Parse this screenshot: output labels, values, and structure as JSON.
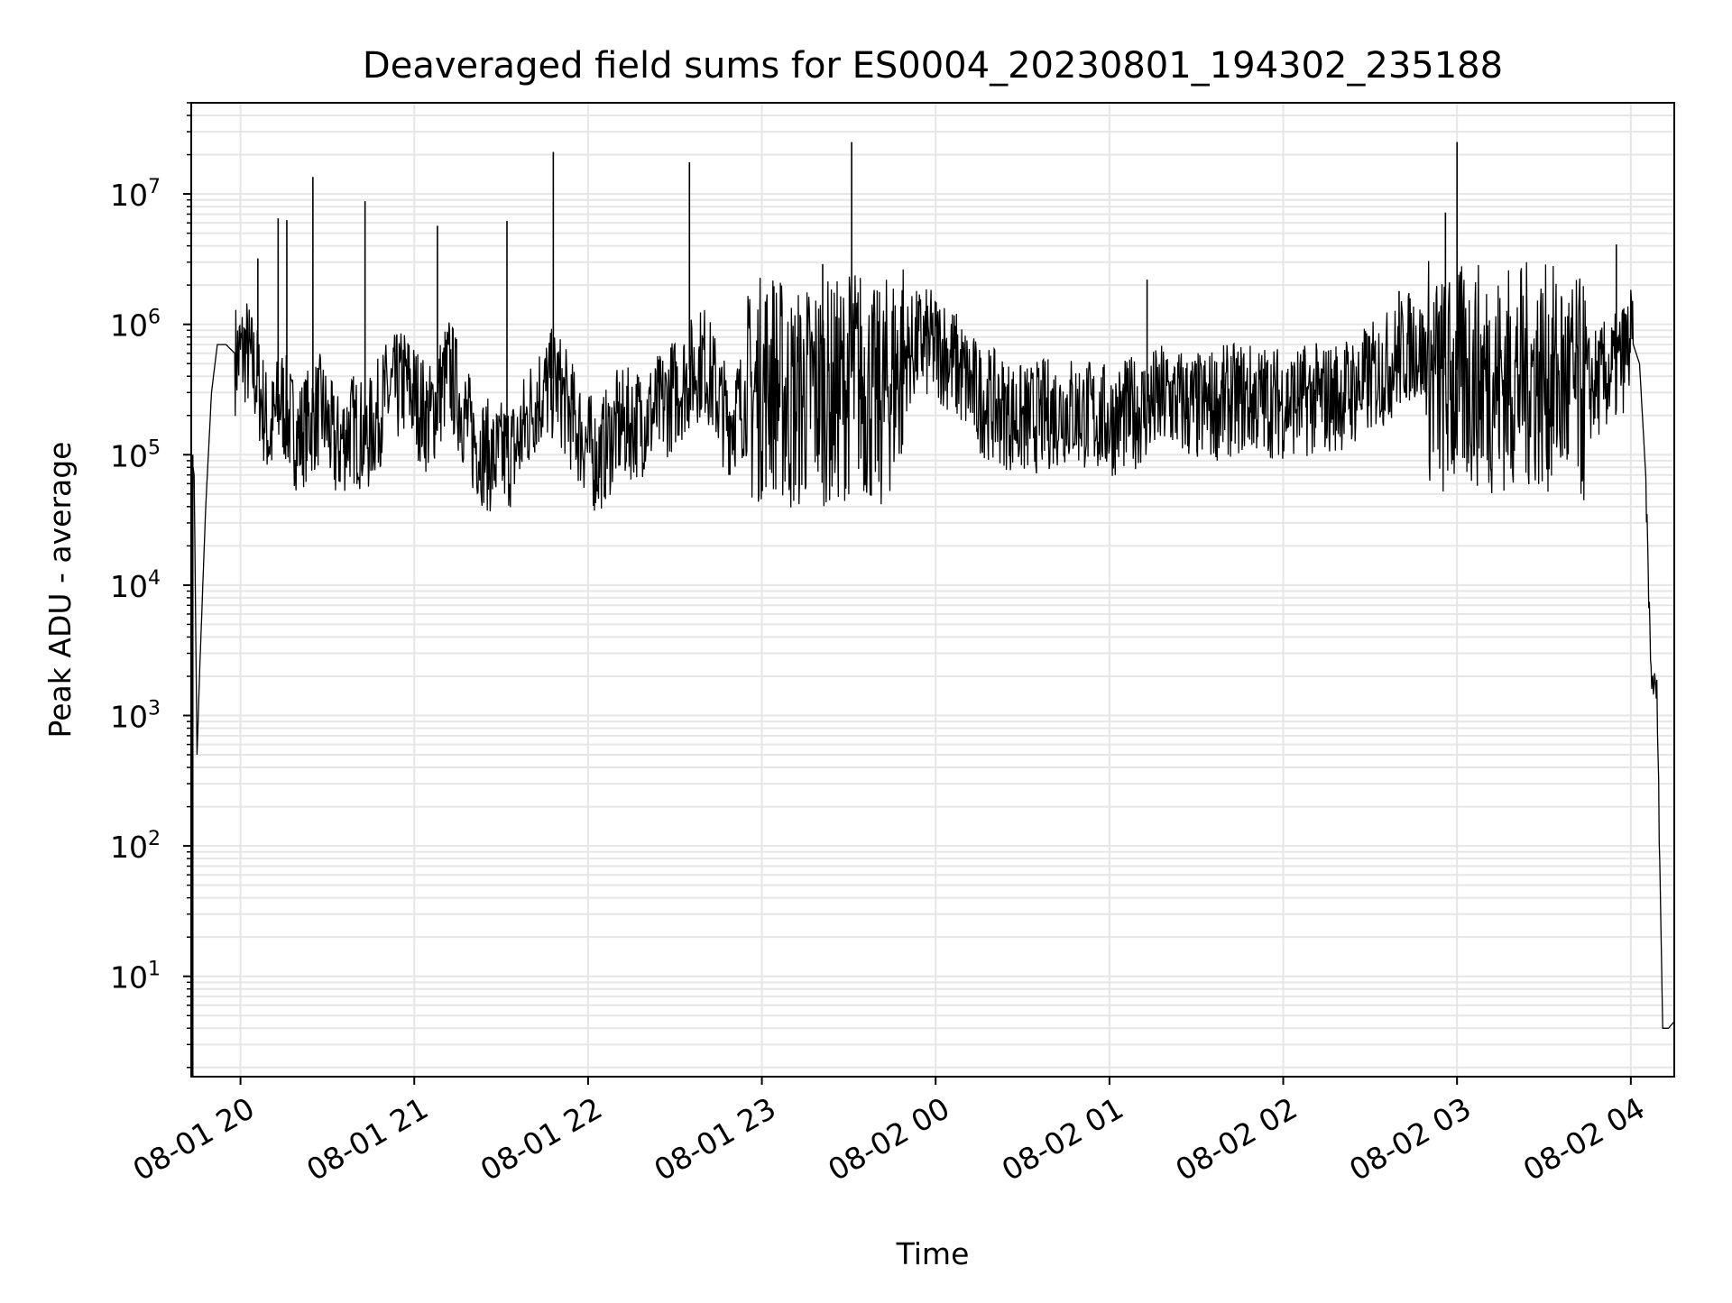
{
  "chart_data": {
    "type": "line",
    "title": "Deaveraged field sums for ES0004_20230801_194302_235188",
    "xlabel": "Time",
    "ylabel": "Peak ADU - average",
    "yscale": "log",
    "ylim": [
      1.7,
      50000000
    ],
    "xlim": [
      "2023-08-01 19:43",
      "2023-08-02 04:15"
    ],
    "grid": true,
    "x_ticks": [
      "08-01 20",
      "08-01 21",
      "08-01 22",
      "08-01 23",
      "08-02 00",
      "08-02 01",
      "08-02 02",
      "08-02 03",
      "08-02 04"
    ],
    "x_tick_times": [
      "2023-08-01 20:00",
      "2023-08-01 21:00",
      "2023-08-01 22:00",
      "2023-08-01 23:00",
      "2023-08-02 00:00",
      "2023-08-02 01:00",
      "2023-08-02 02:00",
      "2023-08-02 03:00",
      "2023-08-02 04:00"
    ],
    "y_ticks": [
      {
        "value": 10,
        "base": "10",
        "exp": "1"
      },
      {
        "value": 100,
        "base": "10",
        "exp": "2"
      },
      {
        "value": 1000,
        "base": "10",
        "exp": "3"
      },
      {
        "value": 10000,
        "base": "10",
        "exp": "4"
      },
      {
        "value": 100000,
        "base": "10",
        "exp": "5"
      },
      {
        "value": 1000000,
        "base": "10",
        "exp": "6"
      },
      {
        "value": 10000000,
        "base": "10",
        "exp": "7"
      }
    ],
    "line_color": "#000000",
    "grid_color": "#e6e6e6",
    "series": [
      {
        "x": [
          "2023-08-01 19:43",
          "2023-08-01 19:44",
          "2023-08-01 19:45",
          "2023-08-01 19:46",
          "2023-08-01 19:48",
          "2023-08-01 19:50",
          "2023-08-01 19:52",
          "2023-08-01 19:55",
          "2023-08-01 19:58",
          "2023-08-01 20:02",
          "2023-08-01 20:06",
          "2023-08-01 20:10",
          "2023-08-01 20:14",
          "2023-08-01 20:17",
          "2023-08-01 20:20",
          "2023-08-01 20:24",
          "2023-08-01 20:28",
          "2023-08-01 20:33",
          "2023-08-01 20:38",
          "2023-08-01 20:44",
          "2023-08-01 20:50",
          "2023-08-01 20:57",
          "2023-08-01 21:05",
          "2023-08-01 21:12",
          "2023-08-01 21:20",
          "2023-08-01 21:27",
          "2023-08-01 21:35",
          "2023-08-01 21:42",
          "2023-08-01 21:49",
          "2023-08-01 21:55",
          "2023-08-01 22:03",
          "2023-08-01 22:10",
          "2023-08-01 22:18",
          "2023-08-01 22:25",
          "2023-08-01 22:33",
          "2023-08-01 22:40",
          "2023-08-01 22:48",
          "2023-08-01 22:55",
          "2023-08-01 23:03",
          "2023-08-01 23:10",
          "2023-08-01 23:18",
          "2023-08-01 23:25",
          "2023-08-01 23:33",
          "2023-08-01 23:40",
          "2023-08-01 23:48",
          "2023-08-01 23:55",
          "2023-08-02 00:03",
          "2023-08-02 00:15",
          "2023-08-02 00:30",
          "2023-08-02 00:45",
          "2023-08-02 01:00",
          "2023-08-02 01:12",
          "2023-08-02 01:20",
          "2023-08-02 01:30",
          "2023-08-02 01:45",
          "2023-08-02 02:00",
          "2023-08-02 02:15",
          "2023-08-02 02:25",
          "2023-08-02 02:35",
          "2023-08-02 02:45",
          "2023-08-02 02:55",
          "2023-08-02 03:05",
          "2023-08-02 03:15",
          "2023-08-02 03:25",
          "2023-08-02 03:35",
          "2023-08-02 03:45",
          "2023-08-02 03:55",
          "2023-08-02 04:00",
          "2023-08-02 04:03",
          "2023-08-02 04:05",
          "2023-08-02 04:07",
          "2023-08-02 04:09",
          "2023-08-02 04:11",
          "2023-08-02 04:12",
          "2023-08-02 04:13",
          "2023-08-02 04:15"
        ],
        "y": [
          100000,
          70000,
          500,
          2500,
          40000,
          300000,
          700000,
          700000,
          600000,
          700000,
          400000,
          150000,
          300000,
          200000,
          150000,
          200000,
          250000,
          120000,
          180000,
          150000,
          300000,
          400000,
          200000,
          500000,
          150000,
          100000,
          120000,
          300000,
          400000,
          200000,
          100000,
          180000,
          200000,
          250000,
          400000,
          600000,
          200000,
          300000,
          500000,
          300000,
          400000,
          350000,
          500000,
          300000,
          600000,
          800000,
          700000,
          300000,
          200000,
          250000,
          200000,
          250000,
          300000,
          250000,
          300000,
          280000,
          300000,
          350000,
          500000,
          800000,
          400000,
          500000,
          450000,
          500000,
          450000,
          350000,
          500000,
          800000,
          500000,
          80000,
          2000,
          1500,
          4,
          4,
          4,
          4.5
        ]
      }
    ],
    "spikes": [
      {
        "x": "2023-08-01 20:06",
        "y": 3200000
      },
      {
        "x": "2023-08-01 20:13",
        "y": 6500000
      },
      {
        "x": "2023-08-01 20:16",
        "y": 6300000
      },
      {
        "x": "2023-08-01 20:25",
        "y": 13500000
      },
      {
        "x": "2023-08-01 20:43",
        "y": 8800000
      },
      {
        "x": "2023-08-01 21:08",
        "y": 5700000
      },
      {
        "x": "2023-08-01 21:32",
        "y": 6200000
      },
      {
        "x": "2023-08-01 21:48",
        "y": 21000000
      },
      {
        "x": "2023-08-01 22:35",
        "y": 17500000
      },
      {
        "x": "2023-08-01 23:21",
        "y": 2900000
      },
      {
        "x": "2023-08-01 23:31",
        "y": 25000000
      },
      {
        "x": "2023-08-02 01:13",
        "y": 2200000
      },
      {
        "x": "2023-08-02 02:40",
        "y": 1800000
      },
      {
        "x": "2023-08-02 02:56",
        "y": 7200000
      },
      {
        "x": "2023-08-02 03:00",
        "y": 25000000
      },
      {
        "x": "2023-08-02 03:55",
        "y": 4100000
      }
    ]
  }
}
